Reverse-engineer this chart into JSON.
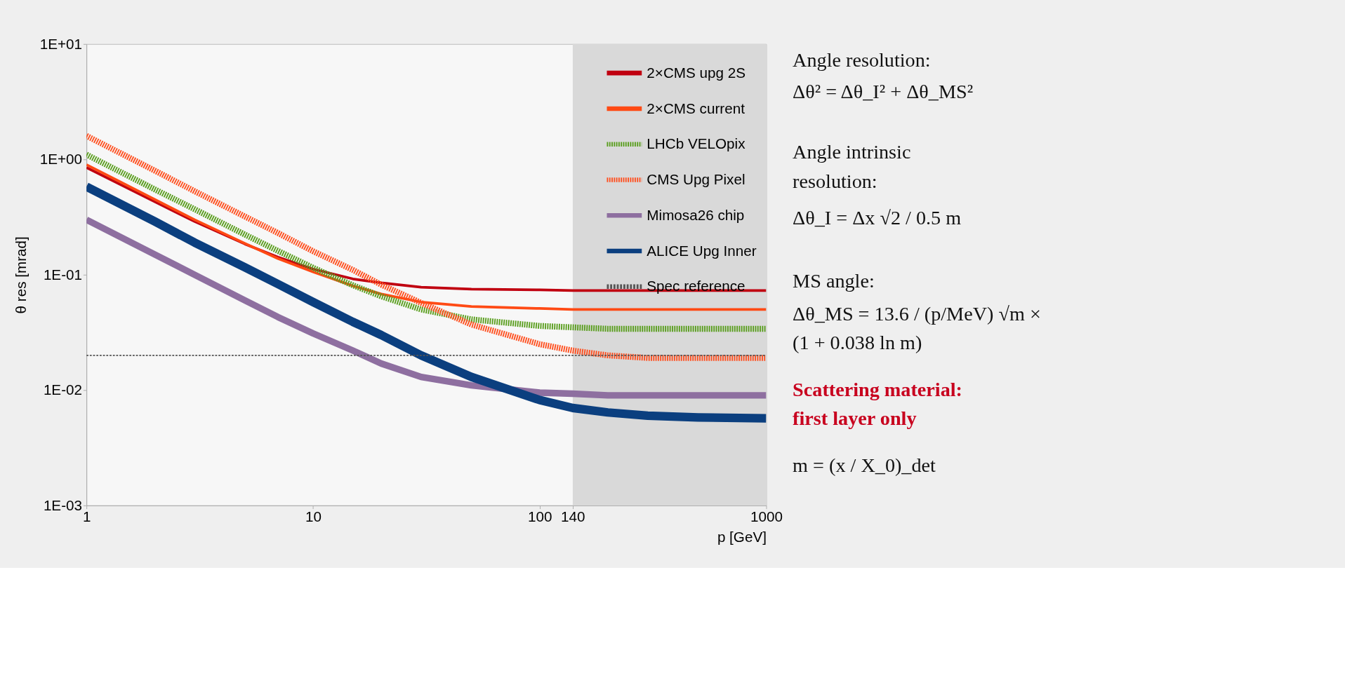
{
  "chart_data": {
    "type": "line",
    "xlabel": "p [GeV]",
    "ylabel": "θ res [mrad]",
    "x": [
      1,
      2,
      3,
      5,
      7,
      10,
      15,
      20,
      30,
      50,
      100,
      140,
      200,
      300,
      500,
      1000
    ],
    "series": [
      {
        "name": "2×CMS upg 2S",
        "color": "#c00010",
        "line_style": "solid",
        "values": [
          0.85,
          0.43,
          0.29,
          0.185,
          0.142,
          0.112,
          0.092,
          0.085,
          0.078,
          0.075,
          0.074,
          0.073,
          0.073,
          0.073,
          0.073,
          0.073
        ]
      },
      {
        "name": "2×CMS current",
        "color": "#ff4a14",
        "line_style": "solid",
        "values": [
          0.9,
          0.45,
          0.3,
          0.187,
          0.138,
          0.106,
          0.08,
          0.068,
          0.058,
          0.053,
          0.051,
          0.05,
          0.05,
          0.05,
          0.05,
          0.05
        ]
      },
      {
        "name": "LHCb VELOpix",
        "color": "#5a9e1e",
        "line_style": "dotted",
        "values": [
          1.1,
          0.55,
          0.37,
          0.223,
          0.161,
          0.115,
          0.081,
          0.065,
          0.05,
          0.041,
          0.036,
          0.035,
          0.034,
          0.034,
          0.034,
          0.034
        ]
      },
      {
        "name": "CMS Upg Pixel",
        "color": "#ff5020",
        "line_style": "dotted",
        "values": [
          1.6,
          0.8,
          0.53,
          0.32,
          0.23,
          0.16,
          0.11,
          0.082,
          0.057,
          0.037,
          0.025,
          0.022,
          0.02,
          0.019,
          0.019,
          0.019
        ]
      },
      {
        "name": "Mimosa26 chip",
        "color": "#8e6fa0",
        "line_style": "solid",
        "values": [
          0.3,
          0.15,
          0.1,
          0.06,
          0.043,
          0.031,
          0.022,
          0.017,
          0.013,
          0.011,
          0.0095,
          0.0093,
          0.009,
          0.009,
          0.009,
          0.009
        ]
      },
      {
        "name": "ALICE Upg Inner",
        "color": "#0b3f7f",
        "line_style": "solid",
        "values": [
          0.58,
          0.29,
          0.19,
          0.116,
          0.083,
          0.058,
          0.039,
          0.03,
          0.02,
          0.013,
          0.0082,
          0.007,
          0.0064,
          0.006,
          0.0058,
          0.0057
        ]
      }
    ],
    "ref_lines": [
      {
        "axis": "y",
        "value": 0.02,
        "label": "Spec reference",
        "color": "#555555",
        "line_style": "dashed"
      }
    ],
    "bands": [
      {
        "axis": "x",
        "from": 140,
        "to": 1000,
        "color": "#d9d9d9"
      }
    ],
    "xlim": [
      1,
      1000
    ],
    "xticks": [
      1,
      10,
      100,
      140,
      1000
    ],
    "ylim": [
      0.001,
      10
    ],
    "yticks": [
      {
        "value": 0.001,
        "label": "1E-03"
      },
      {
        "value": 0.01,
        "label": "1E-02"
      },
      {
        "value": 0.1,
        "label": "1E-01"
      },
      {
        "value": 1,
        "label": "1E+00"
      },
      {
        "value": 10,
        "label": "1E+01"
      }
    ],
    "log": "xy",
    "grid": false,
    "legend": "top right",
    "annotations": [
      "Angle resolution:",
      "Δθ² = Δθ_I² + Δθ_MS²",
      "Angle intrinsic\nresolution:",
      "Δθ_I = Δx √2 / 0.5 m",
      "MS angle:",
      "Δθ_MS = 13.6 / (p/MeV) √m ×\n(1 + 0.038 ln m)",
      "Scattering material:\nfirst layer only",
      "m = (x / X_0)_det"
    ]
  }
}
